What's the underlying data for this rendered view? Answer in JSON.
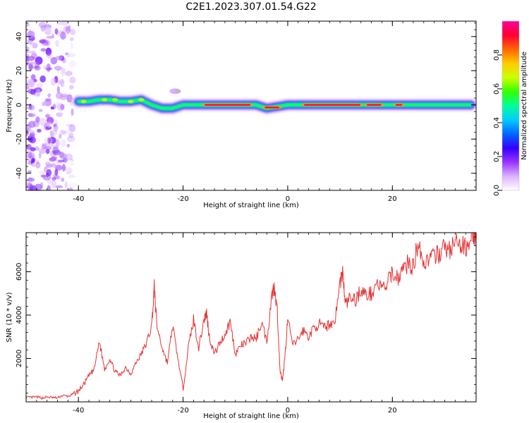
{
  "title": "C2E1.2023.307.01.54.G22",
  "chart_data": [
    {
      "type": "heatmap",
      "panel": "spectrogram",
      "xlabel": "Height of straight line (km)",
      "ylabel": "Frequency (Hz)",
      "xlim": [
        -50,
        36
      ],
      "ylim": [
        -50,
        49
      ],
      "xticks": [
        -40,
        -20,
        0,
        20
      ],
      "yticks": [
        -40,
        -20,
        0,
        20,
        40
      ],
      "colorbar": {
        "label": "Normalized spectral amplitude",
        "range": [
          0,
          1
        ],
        "ticks": [
          0.0,
          0.2,
          0.4,
          0.6,
          0.8
        ],
        "tick_labels": [
          "0.0",
          "0.2",
          "0.4",
          "0.6",
          "0.8"
        ],
        "colors": [
          "#ffffff",
          "#d9b3ff",
          "#9933ff",
          "#3300ff",
          "#0066ff",
          "#00ccff",
          "#00ff99",
          "#33ff00",
          "#ccff00",
          "#ffcc00",
          "#ff6600",
          "#ff0033",
          "#ff0099"
        ]
      },
      "ridge": [
        {
          "x": -40,
          "f": 2
        },
        {
          "x": -38,
          "f": 2
        },
        {
          "x": -36,
          "f": 3
        },
        {
          "x": -34,
          "f": 3
        },
        {
          "x": -32,
          "f": 2
        },
        {
          "x": -30,
          "f": 2
        },
        {
          "x": -28,
          "f": 3
        },
        {
          "x": -26,
          "f": 0
        },
        {
          "x": -24,
          "f": -2
        },
        {
          "x": -22,
          "f": -2
        },
        {
          "x": -20,
          "f": 0
        },
        {
          "x": -16,
          "f": 0
        },
        {
          "x": -10,
          "f": 0
        },
        {
          "x": -6,
          "f": 0
        },
        {
          "x": -4,
          "f": -2
        },
        {
          "x": -2,
          "f": -1
        },
        {
          "x": 0,
          "f": 0
        },
        {
          "x": 3,
          "f": 0
        },
        {
          "x": 10,
          "f": 0
        },
        {
          "x": 20,
          "f": 0
        },
        {
          "x": 30,
          "f": 0
        },
        {
          "x": 35,
          "f": 0
        }
      ],
      "noise_region": {
        "x": [
          -50,
          -41
        ],
        "f": [
          -50,
          49
        ]
      }
    },
    {
      "type": "line",
      "panel": "snr",
      "xlabel": "Height of straight line (km)",
      "ylabel": "SNR (10 * v/v)",
      "xlim": [
        -50,
        36
      ],
      "ylim": [
        0,
        7800
      ],
      "xticks": [
        -40,
        -20,
        0,
        20
      ],
      "yticks": [
        2000,
        4000,
        6000
      ],
      "series": [
        {
          "name": "SNR",
          "color": "#e53333",
          "x": [
            -50,
            -49,
            -48,
            -47,
            -46,
            -45,
            -44,
            -43,
            -42,
            -41,
            -40,
            -39,
            -38,
            -37,
            -36,
            -35,
            -34,
            -33,
            -32,
            -31,
            -30,
            -29,
            -28,
            -27,
            -26,
            -25.5,
            -25,
            -24,
            -23,
            -22,
            -21,
            -20,
            -19,
            -18,
            -17,
            -16,
            -15.5,
            -15,
            -14,
            -13,
            -12,
            -11,
            -10,
            -9,
            -8,
            -7,
            -6,
            -5,
            -4,
            -3,
            -2.5,
            -2,
            -1.5,
            -1,
            -0.5,
            0,
            1,
            2,
            3,
            4,
            5,
            6,
            7,
            8,
            9,
            10,
            10.5,
            11,
            12,
            13,
            14,
            15,
            16,
            17,
            18,
            19,
            20,
            21,
            22,
            23,
            24,
            25,
            26,
            27,
            28,
            29,
            30,
            31,
            32,
            33,
            34,
            35,
            35.5,
            36
          ],
          "y": [
            200,
            200,
            230,
            180,
            220,
            200,
            180,
            300,
            250,
            350,
            500,
            800,
            1200,
            1500,
            2800,
            1500,
            2000,
            1400,
            1200,
            1600,
            1300,
            1800,
            2200,
            2700,
            3500,
            5300,
            3500,
            2500,
            1800,
            3500,
            2000,
            600,
            2500,
            3800,
            2500,
            3800,
            4100,
            3000,
            2200,
            2700,
            3100,
            3700,
            2200,
            2600,
            2700,
            3000,
            2900,
            3700,
            2800,
            5000,
            5300,
            4200,
            1500,
            900,
            2200,
            3800,
            2600,
            2900,
            3300,
            3000,
            3400,
            3600,
            3400,
            3600,
            3700,
            5500,
            6000,
            4500,
            4800,
            4700,
            5200,
            4900,
            5000,
            5500,
            5200,
            5400,
            6000,
            5700,
            6100,
            6400,
            6200,
            7500,
            6300,
            6700,
            6600,
            6900,
            7100,
            7000,
            7300,
            7200,
            7100,
            7700,
            7800,
            7300
          ]
        }
      ]
    }
  ]
}
